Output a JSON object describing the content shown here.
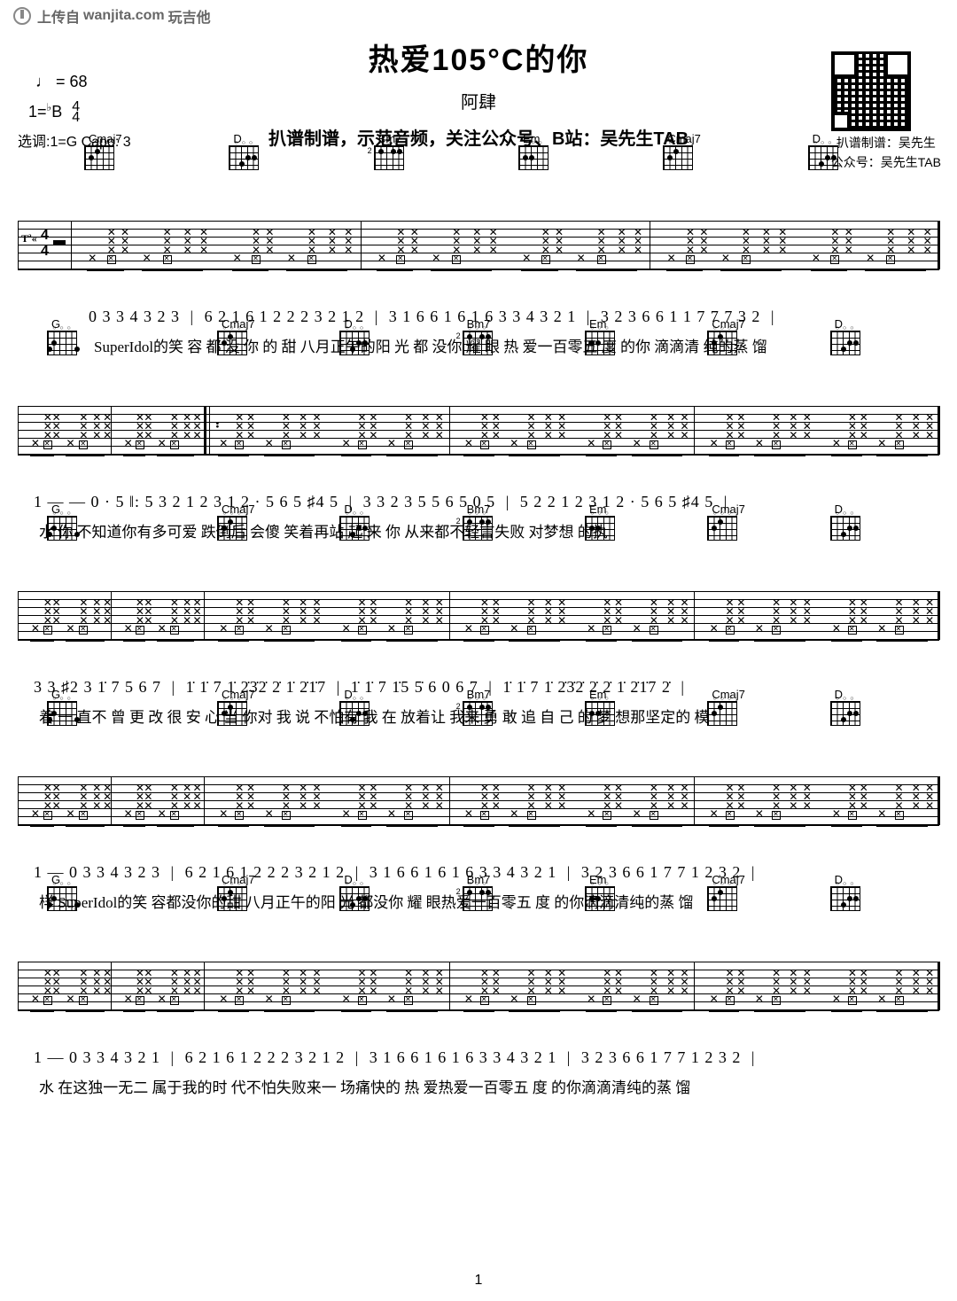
{
  "watermark": {
    "prefix": "上传自",
    "domain": "wanjita.com",
    "suffix": "玩吉他"
  },
  "header": {
    "title": "热爱105°C的你",
    "artist": "阿肆",
    "subtitle": "扒谱制谱，示范音频，关注公众号、B站：吴先生TAB",
    "tempo_label": "= 68",
    "key_prefix": "1=",
    "key_note": "B",
    "time_sig_top": "4",
    "time_sig_bot": "4",
    "tuning": "选调:1=G   Capo: 3"
  },
  "qr": {
    "line1": "扒谱制谱：吴先生",
    "line2": "公众号：吴先生TAB"
  },
  "chords": {
    "progression_main": [
      "Cmaj7",
      "D",
      "Bm7",
      "Em",
      "Cmaj7",
      "D"
    ],
    "progression_turn": [
      "G"
    ]
  },
  "systems": [
    {
      "chords": [
        "Cmaj7",
        "D",
        "Bm7",
        "Em",
        "Cmaj7",
        "D"
      ],
      "chords_left": null,
      "first": true,
      "notes": "0 3 3 4 3 2 3 | 6 2 1 6 1 2 2 2 3 2 1 2 | 3 1 6 6 1 6 1 6 3 3 4 3 2 1 | 3 2  3 6  6 1 1 7 7 7 3 2 |",
      "lyrics": "SuperIdol的笑   容 都 没 你 的 甜 八月正午的阳   光 都 没你  耀  眼 热 爱一百零五  度    的你 滴滴清 纯的蒸 馏"
    },
    {
      "chords": [
        "Cmaj7",
        "D",
        "Bm7",
        "Em",
        "Cmaj7",
        "D"
      ],
      "chords_left": "G",
      "notes": " 1     —   —     0 · 5 ‖: 5 3 2 1 2 3 1 2 · 5 6 5 ♯4 5 | 3 3 2 3 5 5 6 5     0 5 | 5 2 2 1 2 3 1 2 · 5 6 5 ♯4 5 |",
      "lyrics": " 水                           你   不知道你有多可爱  跌倒后 会傻  笑着再站 起 来         你  从来都不轻言失败  对梦想 的执"
    },
    {
      "chords": [
        "Cmaj7",
        "D",
        "Bm7",
        "Em",
        "Cmaj7",
        "D"
      ],
      "chords_left": "G",
      "notes": "3 3 ♯2 3 1̇ 7 5  6 7 | 1̇ 1̇ 7 1̇ 2̇3̇2̇ 2̇ 1̇ 2̇1̇7 | 1̇ 1̇ 7 1̇5 5̇ 6     0 6 7 | 1̇ 1̇ 7 1̇  2̇3̇2̇ 2̇ 2̇ 1̇ 2̇1̇7 2̇ |",
      "lyrics": "着 一 直不 曾 更 改  很 安   心 当 你对 我  说 不怕有  我    在 放着让  我来         勇 敢   追 自 己 的 梦   想那坚定的  模"
    },
    {
      "chords": [
        "Cmaj7",
        "D",
        "Bm7",
        "Em",
        "Cmaj7",
        "D"
      ],
      "chords_left": "G",
      "notes": "1     —     0 3 3 4 3 2 3 | 6 2 1 6 1 2 2 2 3 2 1 2 | 3 1 6 6 1 6 1 6 3 3 4 3 2 1 | 3 2  3 6 6 1 7 7 1 2 3 2 |",
      "lyrics": "样              SuperIdol的笑  容都没你的甜 八月正午的阳   光 都没你 耀  眼热爱一百零五  度   的你滴滴清纯的蒸 馏"
    },
    {
      "chords": [
        "Cmaj7",
        "D",
        "Bm7",
        "Em",
        "Cmaj7",
        "D"
      ],
      "chords_left": "G",
      "notes": "1     —     0 3 3 4 3 2 1 | 6 2 1 6 1 2 2 2 3 2 1 2 | 3 1 6 6 1 6 1 6 3 3 4 3 2 1 | 3 2  3 6 6 1 7 7 1 2 3 2 |",
      "lyrics": "水              在这独一无二   属于我的时 代不怕失败来一  场痛快的 热  爱热爱一百零五  度   的你滴滴清纯的蒸 馏"
    }
  ],
  "pagenum": "1",
  "colors": {
    "bg": "#ffffff",
    "fg": "#000000",
    "watermark": "#666666"
  }
}
